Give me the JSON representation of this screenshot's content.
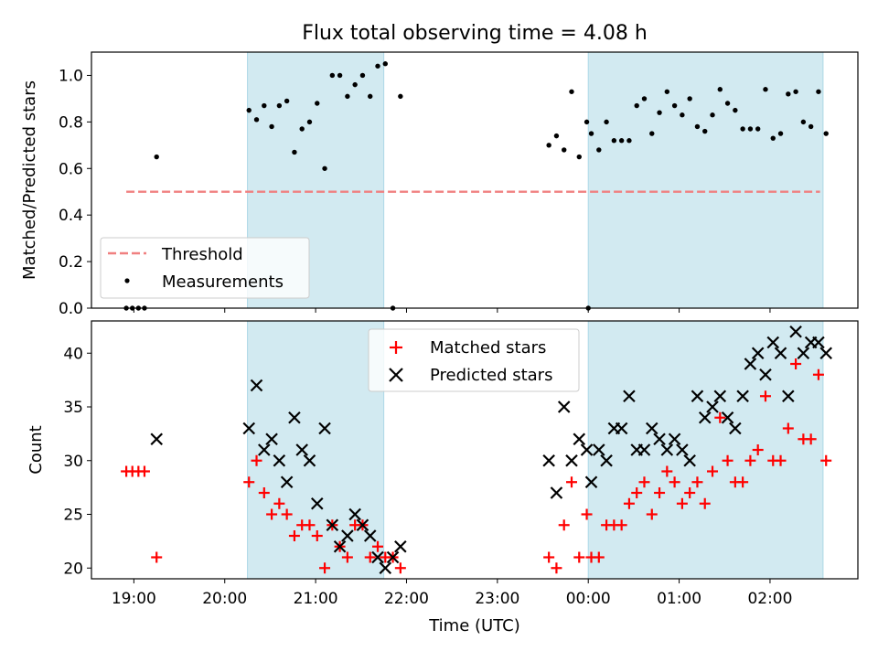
{
  "title": "Flux total observing time = 4.08 h",
  "x_axis": {
    "label": "Time (UTC)",
    "ticks": [
      {
        "t": "19:00",
        "label": "19:00"
      },
      {
        "t": "20:00",
        "label": "20:00"
      },
      {
        "t": "21:00",
        "label": "21:00"
      },
      {
        "t": "22:00",
        "label": "22:00"
      },
      {
        "t": "23:00",
        "label": "23:00"
      },
      {
        "t": "00:00",
        "label": "00:00"
      },
      {
        "t": "01:00",
        "label": "01:00"
      },
      {
        "t": "02:00",
        "label": "02:00"
      }
    ]
  },
  "colors": {
    "band": "#add8e6",
    "threshold": "#f08080",
    "matched": "#ff0000",
    "predicted": "#000000",
    "measurement": "#000000"
  },
  "chart_data": [
    {
      "type": "scatter",
      "ylabel": "Matched/Predicted stars",
      "ylim": [
        0.0,
        1.1
      ],
      "yticks": [
        "0.0",
        "0.2",
        "0.4",
        "0.6",
        "0.8",
        "1.0"
      ],
      "xlim": [
        "18:32",
        "02:58"
      ],
      "shaded_intervals": [
        [
          "20:15",
          "21:45"
        ],
        [
          "00:00",
          "02:35"
        ]
      ],
      "legend": {
        "position": "lower-left",
        "entries": [
          "Threshold",
          "Measurements"
        ]
      },
      "series": [
        {
          "name": "Threshold",
          "style": "dashed-line",
          "points": [
            [
              "18:55",
              0.5
            ],
            [
              "02:33",
              0.5
            ]
          ]
        },
        {
          "name": "Measurements",
          "style": "dot",
          "points": [
            [
              "18:55",
              0.0
            ],
            [
              "18:59",
              0.0
            ],
            [
              "19:03",
              0.0
            ],
            [
              "19:07",
              0.0
            ],
            [
              "19:15",
              0.65
            ],
            [
              "20:16",
              0.85
            ],
            [
              "20:21",
              0.81
            ],
            [
              "20:26",
              0.87
            ],
            [
              "20:31",
              0.78
            ],
            [
              "20:36",
              0.87
            ],
            [
              "20:41",
              0.89
            ],
            [
              "20:46",
              0.67
            ],
            [
              "20:51",
              0.77
            ],
            [
              "20:56",
              0.8
            ],
            [
              "21:01",
              0.88
            ],
            [
              "21:06",
              0.6
            ],
            [
              "21:11",
              1.0
            ],
            [
              "21:16",
              1.0
            ],
            [
              "21:21",
              0.91
            ],
            [
              "21:26",
              0.96
            ],
            [
              "21:31",
              1.0
            ],
            [
              "21:36",
              0.91
            ],
            [
              "21:41",
              1.04
            ],
            [
              "21:46",
              1.05
            ],
            [
              "21:51",
              0.0
            ],
            [
              "21:56",
              0.91
            ],
            [
              "23:34",
              0.7
            ],
            [
              "23:39",
              0.74
            ],
            [
              "23:44",
              0.68
            ],
            [
              "23:49",
              0.93
            ],
            [
              "23:54",
              0.65
            ],
            [
              "23:59",
              0.8
            ],
            [
              "00:00",
              0.0
            ],
            [
              "00:02",
              0.75
            ],
            [
              "00:07",
              0.68
            ],
            [
              "00:12",
              0.8
            ],
            [
              "00:17",
              0.72
            ],
            [
              "00:22",
              0.72
            ],
            [
              "00:27",
              0.72
            ],
            [
              "00:32",
              0.87
            ],
            [
              "00:37",
              0.9
            ],
            [
              "00:42",
              0.75
            ],
            [
              "00:47",
              0.84
            ],
            [
              "00:52",
              0.93
            ],
            [
              "00:57",
              0.87
            ],
            [
              "01:02",
              0.83
            ],
            [
              "01:07",
              0.9
            ],
            [
              "01:12",
              0.78
            ],
            [
              "01:17",
              0.76
            ],
            [
              "01:22",
              0.83
            ],
            [
              "01:27",
              0.94
            ],
            [
              "01:32",
              0.88
            ],
            [
              "01:37",
              0.85
            ],
            [
              "01:42",
              0.77
            ],
            [
              "01:47",
              0.77
            ],
            [
              "01:52",
              0.77
            ],
            [
              "01:57",
              0.94
            ],
            [
              "02:02",
              0.73
            ],
            [
              "02:07",
              0.75
            ],
            [
              "02:12",
              0.92
            ],
            [
              "02:17",
              0.93
            ],
            [
              "02:22",
              0.8
            ],
            [
              "02:27",
              0.78
            ],
            [
              "02:32",
              0.93
            ],
            [
              "02:37",
              0.75
            ]
          ]
        }
      ]
    },
    {
      "type": "scatter",
      "ylabel": "Count",
      "xlabel": "Time (UTC)",
      "ylim": [
        19.0,
        43.0
      ],
      "yticks": [
        "20",
        "25",
        "30",
        "35",
        "40"
      ],
      "xlim": [
        "18:32",
        "02:58"
      ],
      "shaded_intervals": [
        [
          "20:15",
          "21:45"
        ],
        [
          "00:00",
          "02:35"
        ]
      ],
      "legend": {
        "position": "top-center",
        "entries": [
          "Matched stars",
          "Predicted stars"
        ]
      },
      "series": [
        {
          "name": "Matched stars",
          "marker": "plus",
          "points": [
            [
              "18:55",
              29
            ],
            [
              "18:59",
              29
            ],
            [
              "19:03",
              29
            ],
            [
              "19:07",
              29
            ],
            [
              "19:15",
              21
            ],
            [
              "20:16",
              28
            ],
            [
              "20:21",
              30
            ],
            [
              "20:26",
              27
            ],
            [
              "20:31",
              25
            ],
            [
              "20:36",
              26
            ],
            [
              "20:41",
              25
            ],
            [
              "20:46",
              23
            ],
            [
              "20:51",
              24
            ],
            [
              "20:56",
              24
            ],
            [
              "21:01",
              23
            ],
            [
              "21:06",
              20
            ],
            [
              "21:11",
              24
            ],
            [
              "21:16",
              22
            ],
            [
              "21:21",
              21
            ],
            [
              "21:26",
              24
            ],
            [
              "21:31",
              24
            ],
            [
              "21:36",
              21
            ],
            [
              "21:41",
              22
            ],
            [
              "21:46",
              21
            ],
            [
              "21:51",
              21
            ],
            [
              "21:56",
              20
            ],
            [
              "23:34",
              21
            ],
            [
              "23:39",
              20
            ],
            [
              "23:44",
              24
            ],
            [
              "23:49",
              28
            ],
            [
              "23:54",
              21
            ],
            [
              "23:59",
              25
            ],
            [
              "00:02",
              21
            ],
            [
              "00:07",
              21
            ],
            [
              "00:12",
              24
            ],
            [
              "00:17",
              24
            ],
            [
              "00:22",
              24
            ],
            [
              "00:27",
              26
            ],
            [
              "00:32",
              27
            ],
            [
              "00:37",
              28
            ],
            [
              "00:42",
              25
            ],
            [
              "00:47",
              27
            ],
            [
              "00:52",
              29
            ],
            [
              "00:57",
              28
            ],
            [
              "01:02",
              26
            ],
            [
              "01:07",
              27
            ],
            [
              "01:12",
              28
            ],
            [
              "01:17",
              26
            ],
            [
              "01:22",
              29
            ],
            [
              "01:27",
              34
            ],
            [
              "01:32",
              30
            ],
            [
              "01:37",
              28
            ],
            [
              "01:42",
              28
            ],
            [
              "01:47",
              30
            ],
            [
              "01:52",
              31
            ],
            [
              "01:57",
              36
            ],
            [
              "02:02",
              30
            ],
            [
              "02:07",
              30
            ],
            [
              "02:12",
              33
            ],
            [
              "02:17",
              39
            ],
            [
              "02:22",
              32
            ],
            [
              "02:27",
              32
            ],
            [
              "02:32",
              38
            ],
            [
              "02:37",
              30
            ]
          ]
        },
        {
          "name": "Predicted stars",
          "marker": "x",
          "points": [
            [
              "19:15",
              32
            ],
            [
              "20:16",
              33
            ],
            [
              "20:21",
              37
            ],
            [
              "20:26",
              31
            ],
            [
              "20:31",
              32
            ],
            [
              "20:36",
              30
            ],
            [
              "20:41",
              28
            ],
            [
              "20:46",
              34
            ],
            [
              "20:51",
              31
            ],
            [
              "20:56",
              30
            ],
            [
              "21:01",
              26
            ],
            [
              "21:06",
              33
            ],
            [
              "21:11",
              24
            ],
            [
              "21:16",
              22
            ],
            [
              "21:21",
              23
            ],
            [
              "21:26",
              25
            ],
            [
              "21:31",
              24
            ],
            [
              "21:36",
              23
            ],
            [
              "21:41",
              21
            ],
            [
              "21:46",
              20
            ],
            [
              "21:51",
              21
            ],
            [
              "21:56",
              22
            ],
            [
              "23:34",
              30
            ],
            [
              "23:39",
              27
            ],
            [
              "23:44",
              35
            ],
            [
              "23:49",
              30
            ],
            [
              "23:54",
              32
            ],
            [
              "23:59",
              31
            ],
            [
              "00:02",
              28
            ],
            [
              "00:07",
              31
            ],
            [
              "00:12",
              30
            ],
            [
              "00:17",
              33
            ],
            [
              "00:22",
              33
            ],
            [
              "00:27",
              36
            ],
            [
              "00:32",
              31
            ],
            [
              "00:37",
              31
            ],
            [
              "00:42",
              33
            ],
            [
              "00:47",
              32
            ],
            [
              "00:52",
              31
            ],
            [
              "00:57",
              32
            ],
            [
              "01:02",
              31
            ],
            [
              "01:07",
              30
            ],
            [
              "01:12",
              36
            ],
            [
              "01:17",
              34
            ],
            [
              "01:22",
              35
            ],
            [
              "01:27",
              36
            ],
            [
              "01:32",
              34
            ],
            [
              "01:37",
              33
            ],
            [
              "01:42",
              36
            ],
            [
              "01:47",
              39
            ],
            [
              "01:52",
              40
            ],
            [
              "01:57",
              38
            ],
            [
              "02:02",
              41
            ],
            [
              "02:07",
              40
            ],
            [
              "02:12",
              36
            ],
            [
              "02:17",
              42
            ],
            [
              "02:22",
              40
            ],
            [
              "02:27",
              41
            ],
            [
              "02:32",
              41
            ],
            [
              "02:37",
              40
            ]
          ]
        }
      ]
    }
  ]
}
